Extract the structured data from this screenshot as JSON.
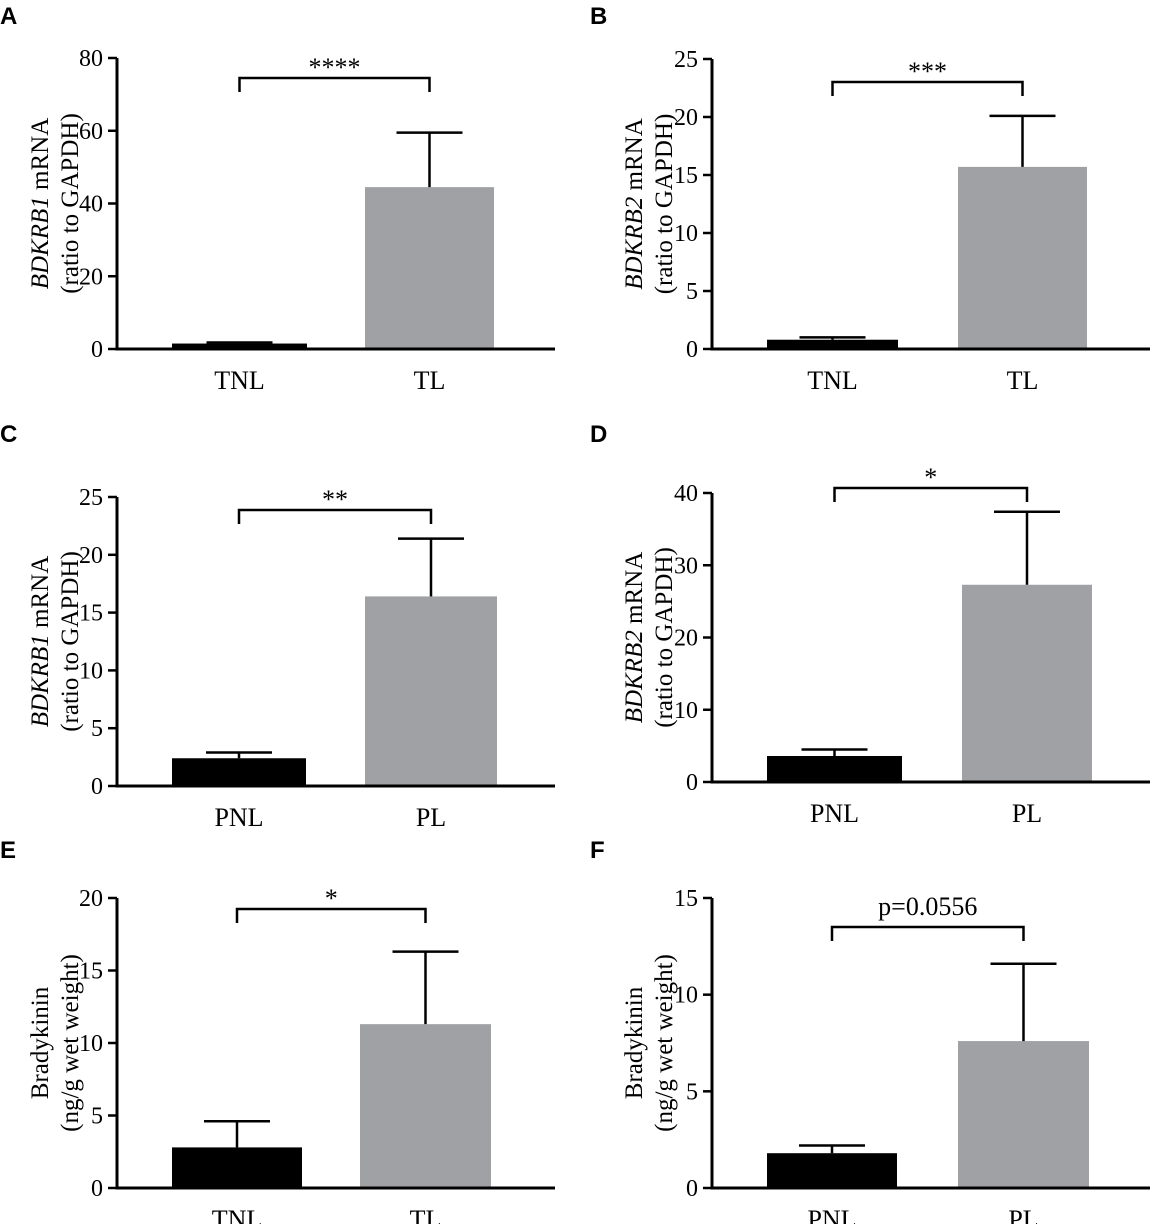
{
  "chart_data": [
    {
      "panel": "A",
      "type": "bar",
      "ylabel_gene": "BDKRB1",
      "ylabel_rest": " mRNA",
      "ylabel_line2": "(ratio to GAPDH)",
      "categories": [
        "TNL",
        "TL"
      ],
      "values": [
        1.5,
        44.5
      ],
      "errors": [
        0.3,
        15.0
      ],
      "colors": [
        "#000000",
        "#a0a1a5"
      ],
      "ylim": [
        0,
        80
      ],
      "yticks": [
        0,
        20,
        40,
        60,
        80
      ],
      "significance": "****"
    },
    {
      "panel": "B",
      "type": "bar",
      "ylabel_gene": "BDKRB2",
      "ylabel_rest": " mRNA",
      "ylabel_line2": "(ratio to GAPDH)",
      "categories": [
        "TNL",
        "TL"
      ],
      "values": [
        0.8,
        15.7
      ],
      "errors": [
        0.2,
        4.4
      ],
      "colors": [
        "#000000",
        "#a0a1a5"
      ],
      "ylim": [
        0,
        25
      ],
      "yticks": [
        0,
        5,
        10,
        15,
        20,
        25
      ],
      "significance": "***"
    },
    {
      "panel": "C",
      "type": "bar",
      "ylabel_gene": "BDKRB1",
      "ylabel_rest": " mRNA",
      "ylabel_line2": "(ratio to GAPDH)",
      "categories": [
        "PNL",
        "PL"
      ],
      "values": [
        2.4,
        16.4
      ],
      "errors": [
        0.5,
        5.0
      ],
      "colors": [
        "#000000",
        "#a0a1a5"
      ],
      "ylim": [
        0,
        25
      ],
      "yticks": [
        0,
        5,
        10,
        15,
        20,
        25
      ],
      "significance": "**"
    },
    {
      "panel": "D",
      "type": "bar",
      "ylabel_gene": "BDKRB2",
      "ylabel_rest": " mRNA",
      "ylabel_line2": "(ratio to GAPDH)",
      "categories": [
        "PNL",
        "PL"
      ],
      "values": [
        3.6,
        27.3
      ],
      "errors": [
        0.9,
        10.1
      ],
      "colors": [
        "#000000",
        "#a0a1a5"
      ],
      "ylim": [
        0,
        40
      ],
      "yticks": [
        0,
        10,
        20,
        30,
        40
      ],
      "significance": "*"
    },
    {
      "panel": "E",
      "type": "bar",
      "ylabel_gene": "",
      "ylabel_rest": "Bradykinin",
      "ylabel_line2": "(ng/g wet weight)",
      "categories": [
        "TNL",
        "TL"
      ],
      "values": [
        2.8,
        11.3
      ],
      "errors": [
        1.8,
        5.0
      ],
      "colors": [
        "#000000",
        "#a0a1a5"
      ],
      "ylim": [
        0,
        20
      ],
      "yticks": [
        0,
        5,
        10,
        15,
        20
      ],
      "significance": "*"
    },
    {
      "panel": "F",
      "type": "bar",
      "ylabel_gene": "",
      "ylabel_rest": "Bradykinin",
      "ylabel_line2": "(ng/g wet weight)",
      "categories": [
        "PNL",
        "PL"
      ],
      "values": [
        1.8,
        7.6
      ],
      "errors": [
        0.4,
        4.0
      ],
      "colors": [
        "#000000",
        "#a0a1a5"
      ],
      "ylim": [
        0,
        15
      ],
      "yticks": [
        0,
        5,
        10,
        15
      ],
      "significance": "p=0.0556"
    }
  ]
}
